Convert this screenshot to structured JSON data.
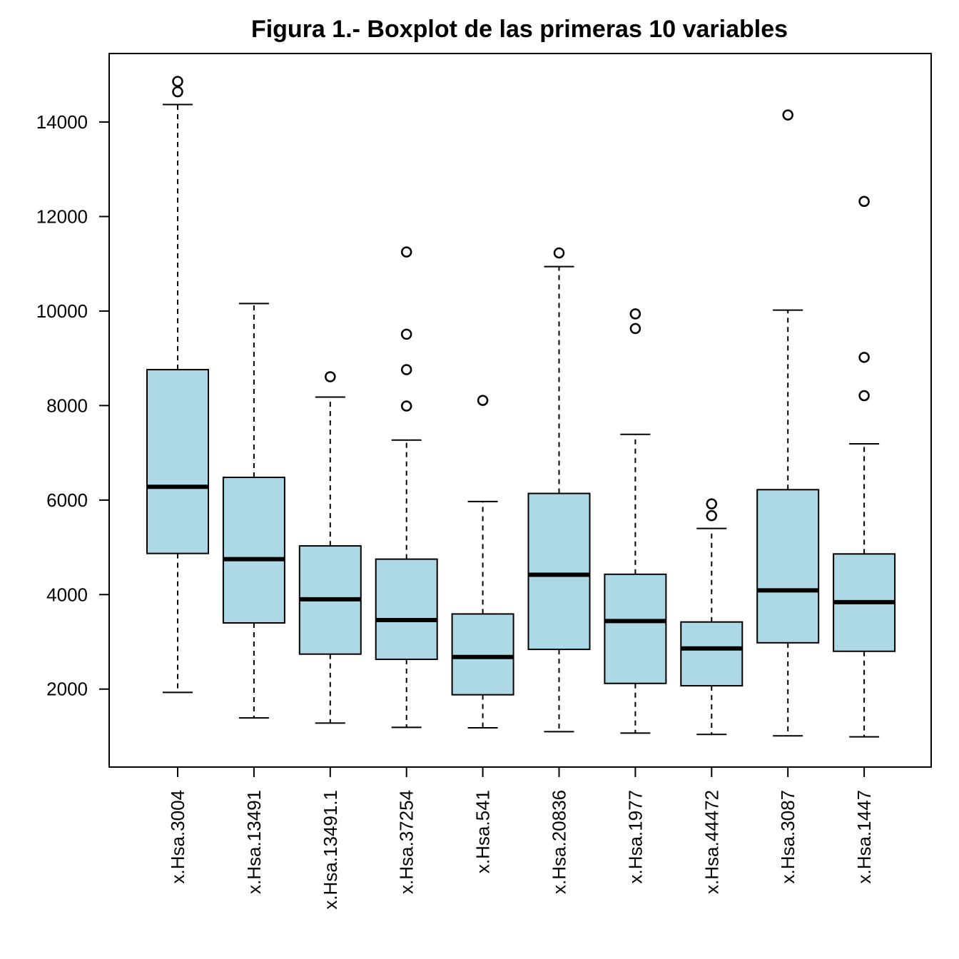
{
  "chart_data": {
    "type": "boxplot",
    "title": "Figura 1.- Boxplot de las primeras 10 variables",
    "xlabel": "",
    "ylabel": "",
    "ylim": [
      350,
      15450
    ],
    "yticks": [
      2000,
      4000,
      6000,
      8000,
      10000,
      12000,
      14000
    ],
    "grid": false,
    "box_color": "#add8e6",
    "categories": [
      "x.Hsa.3004",
      "x.Hsa.13491",
      "x.Hsa.13491.1",
      "x.Hsa.37254",
      "x.Hsa.541",
      "x.Hsa.20836",
      "x.Hsa.1977",
      "x.Hsa.44472",
      "x.Hsa.3087",
      "x.Hsa.1447"
    ],
    "boxes": [
      {
        "whisker_low": 1930,
        "q1": 4870,
        "median": 6280,
        "q3": 8760,
        "whisker_high": 14370,
        "outliers": [
          14640,
          14860
        ]
      },
      {
        "whisker_low": 1390,
        "q1": 3400,
        "median": 4750,
        "q3": 6480,
        "whisker_high": 10160,
        "outliers": []
      },
      {
        "whisker_low": 1280,
        "q1": 2740,
        "median": 3900,
        "q3": 5030,
        "whisker_high": 8180,
        "outliers": [
          8610
        ]
      },
      {
        "whisker_low": 1190,
        "q1": 2630,
        "median": 3460,
        "q3": 4750,
        "whisker_high": 7270,
        "outliers": [
          7990,
          8760,
          9510,
          11250
        ]
      },
      {
        "whisker_low": 1180,
        "q1": 1880,
        "median": 2680,
        "q3": 3590,
        "whisker_high": 5970,
        "outliers": [
          8110
        ]
      },
      {
        "whisker_low": 1100,
        "q1": 2840,
        "median": 4420,
        "q3": 6140,
        "whisker_high": 10940,
        "outliers": [
          11230
        ]
      },
      {
        "whisker_low": 1070,
        "q1": 2120,
        "median": 3440,
        "q3": 4430,
        "whisker_high": 7390,
        "outliers": [
          9630,
          9940
        ]
      },
      {
        "whisker_low": 1040,
        "q1": 2070,
        "median": 2860,
        "q3": 3420,
        "whisker_high": 5400,
        "outliers": [
          5670,
          5920
        ]
      },
      {
        "whisker_low": 1010,
        "q1": 2980,
        "median": 4090,
        "q3": 6220,
        "whisker_high": 10020,
        "outliers": [
          14150
        ]
      },
      {
        "whisker_low": 990,
        "q1": 2800,
        "median": 3840,
        "q3": 4860,
        "whisker_high": 7190,
        "outliers": [
          8210,
          9020,
          12320
        ]
      }
    ]
  }
}
